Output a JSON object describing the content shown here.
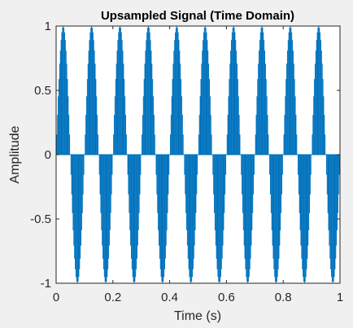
{
  "chart_data": {
    "type": "stem",
    "title": "Upsampled Signal (Time Domain)",
    "xlabel": "Time (s)",
    "ylabel": "Amplitude",
    "xlim": [
      0,
      1
    ],
    "ylim": [
      -1,
      1
    ],
    "xticks": [
      0,
      0.2,
      0.4,
      0.6,
      0.8,
      1
    ],
    "xtick_labels": [
      "0",
      "0.2",
      "0.4",
      "0.6",
      "0.8",
      "1"
    ],
    "yticks": [
      -1,
      -0.5,
      0,
      0.5,
      1
    ],
    "ytick_labels": [
      "-1",
      "-0.5",
      "0",
      "0.5",
      "1"
    ],
    "grid": false,
    "legend": "none",
    "series": [
      {
        "signal": "sine",
        "amplitude": 1,
        "frequency_hz": 10,
        "sample_interval_s": 0.0025,
        "x_start": 0,
        "x_end": 1
      }
    ],
    "colors": {
      "stem": "#0072bd",
      "axes": "#262626",
      "plot_background": "#ffffff",
      "figure_background": "#f0f0f0"
    }
  }
}
